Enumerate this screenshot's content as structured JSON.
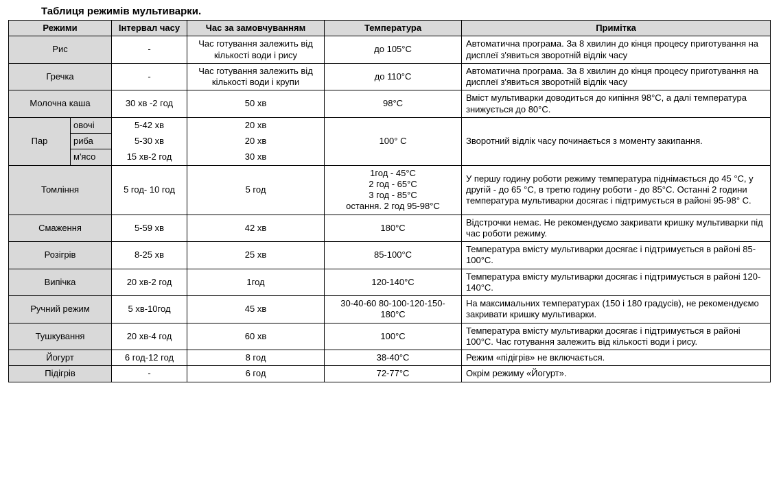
{
  "title": "Таблиця режимів мультиварки.",
  "headers": {
    "modes": "Режими",
    "interval": "Інтервал часу",
    "default_time": "Час за замовчуванням",
    "temperature": "Температура",
    "note": "Примітка"
  },
  "rows": {
    "rice": {
      "mode": "Рис",
      "interval": "-",
      "default": "Час готування залежить від кількості води і рису",
      "temp": "до 105°C",
      "note": "Автоматична програма. За 8 хвилин до кінця процесу приготування на дисплеї  з'явиться зворотній відлік часу"
    },
    "grechka": {
      "mode": "Гречка",
      "interval": "-",
      "default": "Час готування залежить від кількості води і крупи",
      "temp": "до 110°C",
      "note": "Автоматична програма. За 8 хвилин до кінця процесу приготування на дисплеї з'явиться зворотній відлік часу"
    },
    "milk": {
      "mode": "Молочна каша",
      "interval": "30 хв -2 год",
      "default": "50 хв",
      "temp": "98°C",
      "note": "Вміст мультиварки доводиться до кипіння 98°C, а далі температура знижується до 80°C."
    },
    "par": {
      "mode": "Пар",
      "sub1": "овочі",
      "int1": "5-42 хв",
      "def1": "20 хв",
      "sub2": "риба",
      "int2": "5-30 хв",
      "def2": "20 хв",
      "sub3": "м'ясо",
      "int3": "15 хв-2 год",
      "def3": "30 хв",
      "temp": "100° C",
      "note": "Зворотний відлік часу починається з моменту закипання."
    },
    "toml": {
      "mode": "Томління",
      "interval": "5 год- 10 год",
      "default": "5 год",
      "temp": "1год - 45°C\n2 год - 65°C\n3 год - 85°C\nостання. 2 год 95-98°C",
      "note": "У першу годину роботи режиму температура піднімається до 45 °C, у другій - до 65 °C, в третю годину роботи - до 85°C. Останні 2 години температура мультиварки досягає і підтримується в районі 95-98° C."
    },
    "fry": {
      "mode": "Смаження",
      "interval": "5-59 хв",
      "default": "42 хв",
      "temp": "180°C",
      "note": "Відстрочки немає. Не рекомендуємо закривати кришку мультиварки під час роботи режиму."
    },
    "reheat": {
      "mode": "Розігрів",
      "interval": "8-25 хв",
      "default": "25 хв",
      "temp": "85-100°C",
      "note": "Температура вмісту мультиварки досягає і підтримується в районі 85-100°C."
    },
    "bake": {
      "mode": "Випічка",
      "interval": "20 хв-2 год",
      "default": "1год",
      "temp": "120-140°C",
      "note": "Температура вмісту мультиварки досягає і підтримується в районі 120-140°C."
    },
    "manual": {
      "mode": "Ручний режим",
      "interval": "5 хв-10год",
      "default": "45 хв",
      "temp": "30-40-60 80-100-120-150-180°C",
      "note": "На максимальних температурах (150 і 180 градусів), не рекомендуємо закривати кришку мультиварки."
    },
    "stew": {
      "mode": "Тушкування",
      "interval": "20 хв-4 год",
      "default": "60 хв",
      "temp": "100°C",
      "note": "Температура вмісту мультиварки досягає і підтримується в районі 100°C. Час готування залежить від кількості води і рису."
    },
    "yogurt": {
      "mode": "Йогурт",
      "interval": "6 год-12 год",
      "default": "8 год",
      "temp": "38-40°C",
      "note": "Режим «підігрів» не включається."
    },
    "warm": {
      "mode": "Підігрів",
      "interval": "-",
      "default": "6 год",
      "temp": "72-77°C",
      "note": "Окрім режиму «Йогурт»."
    }
  }
}
